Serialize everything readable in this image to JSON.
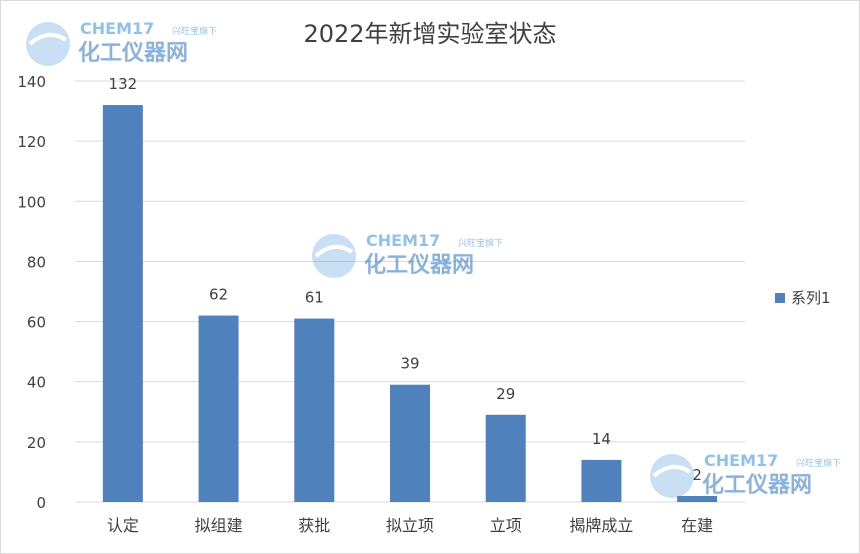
{
  "chart_data": {
    "type": "bar",
    "title": "2022年新增实验室状态",
    "categories": [
      "认定",
      "拟组建",
      "获批",
      "拟立项",
      "立项",
      "揭牌成立",
      "在建"
    ],
    "series": [
      {
        "name": "系列1",
        "values": [
          132,
          62,
          61,
          39,
          29,
          14,
          2
        ]
      }
    ],
    "ylim": [
      0,
      140
    ],
    "yticks": [
      0,
      20,
      40,
      60,
      80,
      100,
      120,
      140
    ],
    "grid": true,
    "legend": "right",
    "data_labels": true,
    "colors": {
      "bar": "#4f81bd",
      "grid": "#d9d9d9",
      "text": "#404040"
    }
  },
  "watermark": {
    "line1": "CHEM17",
    "tag": "兴旺宝旗下",
    "line2": "化工仪器网",
    "colors": {
      "chem": "#3a8fd6",
      "num": "#f39c32",
      "brand": "#2b74c2"
    }
  }
}
